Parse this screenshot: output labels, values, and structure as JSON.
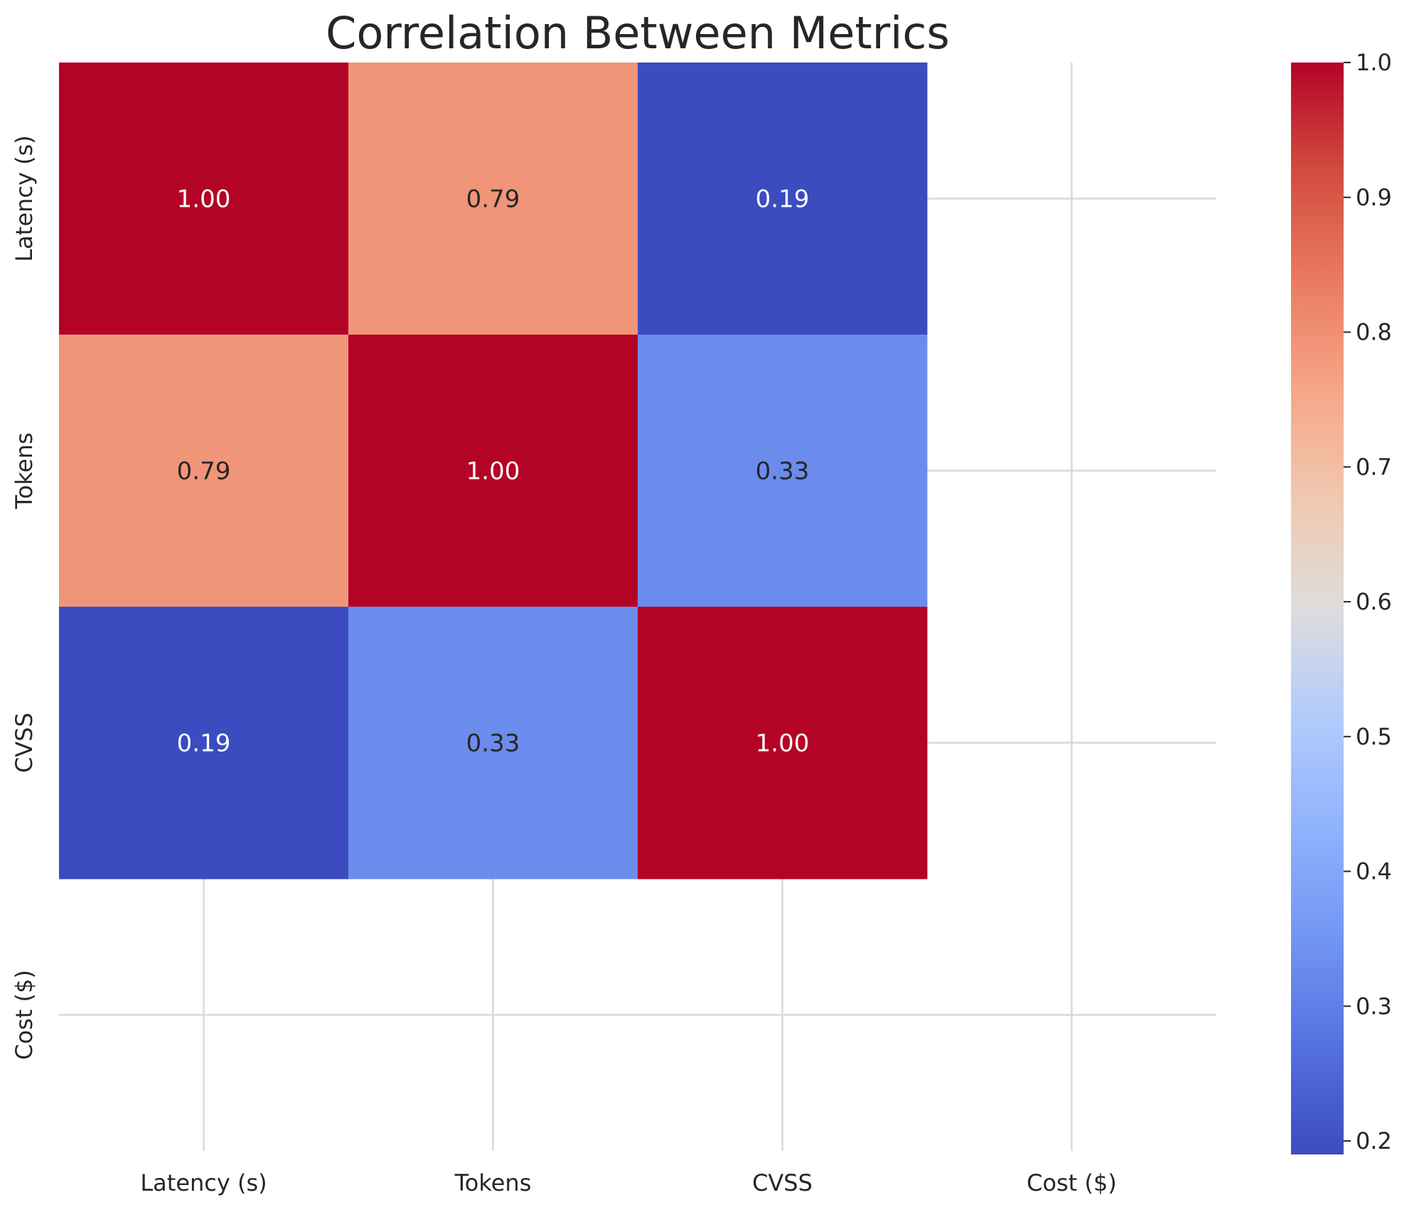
{
  "chart_data": {
    "type": "heatmap",
    "title": "Correlation Between Metrics",
    "xlabel": "",
    "ylabel": "",
    "x_categories": [
      "Latency (s)",
      "Tokens",
      "CVSS",
      "Cost ($)"
    ],
    "y_categories": [
      "Latency (s)",
      "Tokens",
      "CVSS",
      "Cost ($)"
    ],
    "matrix": [
      [
        1.0,
        0.79,
        0.19,
        null
      ],
      [
        0.79,
        1.0,
        0.33,
        null
      ],
      [
        0.19,
        0.33,
        1.0,
        null
      ],
      [
        null,
        null,
        null,
        null
      ]
    ],
    "annotation_format": "0.00",
    "colormap": "coolwarm",
    "colorbar": {
      "vmin": 0.19,
      "vmax": 1.0,
      "ticks": [
        0.2,
        0.3,
        0.4,
        0.5,
        0.6,
        0.7,
        0.8,
        0.9,
        1.0
      ],
      "tick_labels": [
        "0.2",
        "0.3",
        "0.4",
        "0.5",
        "0.6",
        "0.7",
        "0.8",
        "0.9",
        "1.0"
      ]
    },
    "grid": true
  }
}
